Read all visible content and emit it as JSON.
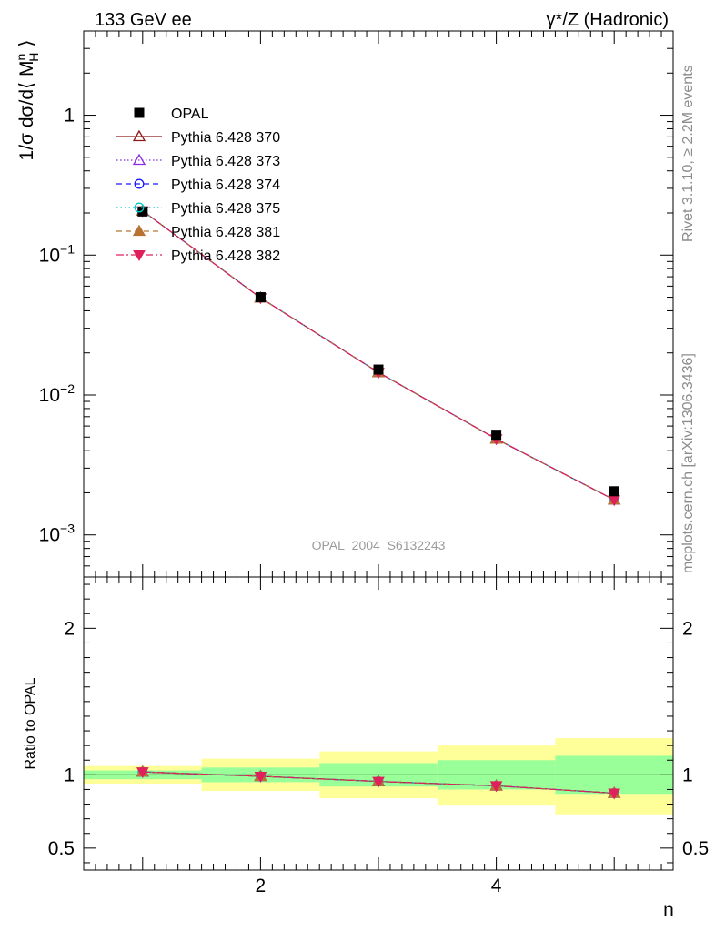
{
  "header": {
    "left": "133 GeV ee",
    "right": "γ*/Z (Hadronic)"
  },
  "side_labels": {
    "top": "Rivet 3.1.10, ≥ 2.2M events",
    "bottom": "mcplots.cern.ch [arXiv:1306.3436]"
  },
  "watermark": "OPAL_2004_S6132243",
  "colors": {
    "data": "#000000",
    "band_inner": "#99ff99",
    "band_outer": "#ffff99",
    "s370": "#8b1a1a",
    "s373": "#8b2be2",
    "s374": "#1a1aff",
    "s375": "#00c8c8",
    "s381": "#b87333",
    "s382": "#e0205a"
  },
  "chart_data": [
    {
      "type": "scatter",
      "ylabel_parts": {
        "prefix": "1/σ dσ/d⟨ M",
        "sup": "n",
        "sub": "H",
        "suffix": " ⟩"
      },
      "yscale": "log",
      "xlim": [
        0.5,
        5.5
      ],
      "ylim": [
        0.0005,
        4.0
      ],
      "yticks": [
        {
          "value": 1,
          "mant": "1",
          "exp": ""
        },
        {
          "value": 0.1,
          "mant": "10",
          "exp": "−1"
        },
        {
          "value": 0.01,
          "mant": "10",
          "exp": "−2"
        },
        {
          "value": 0.001,
          "mant": "10",
          "exp": "−3"
        }
      ],
      "x": [
        1,
        2,
        3,
        4,
        5
      ],
      "data_points": {
        "name": "OPAL",
        "values": [
          0.205,
          0.05,
          0.0152,
          0.0052,
          0.00205
        ]
      },
      "legend_placement": "top-left",
      "series": [
        {
          "name": "Pythia 6.428 370",
          "values": [
            0.207,
            0.0495,
            0.0145,
            0.00485,
            0.00178
          ]
        },
        {
          "name": "Pythia 6.428 373",
          "values": [
            0.207,
            0.0495,
            0.0145,
            0.00485,
            0.00178
          ]
        },
        {
          "name": "Pythia 6.428 374",
          "values": [
            0.207,
            0.0495,
            0.0145,
            0.00485,
            0.00178
          ]
        },
        {
          "name": "Pythia 6.428 375",
          "values": [
            0.207,
            0.0495,
            0.0145,
            0.00485,
            0.00178
          ]
        },
        {
          "name": "Pythia 6.428 381",
          "values": [
            0.207,
            0.0495,
            0.0145,
            0.00485,
            0.00178
          ]
        },
        {
          "name": "Pythia 6.428 382",
          "values": [
            0.207,
            0.0495,
            0.0145,
            0.00485,
            0.00178
          ]
        }
      ]
    },
    {
      "type": "line",
      "ylabel": "Ratio to OPAL",
      "xlabel": "n",
      "xlim": [
        0.5,
        5.5
      ],
      "ylim": [
        0.35,
        2.35
      ],
      "yticks": [
        {
          "value": 2,
          "label": "2"
        },
        {
          "value": 1,
          "label": "1"
        },
        {
          "value": 0.5,
          "label": "0.5"
        }
      ],
      "xticks": [
        {
          "value": 2,
          "label": "2"
        },
        {
          "value": 4,
          "label": "4"
        }
      ],
      "x": [
        1,
        2,
        3,
        4,
        5
      ],
      "bands": [
        {
          "x0": 0.5,
          "x1": 1.5,
          "inner": [
            0.97,
            1.03
          ],
          "outer": [
            0.94,
            1.06
          ]
        },
        {
          "x0": 1.5,
          "x1": 2.5,
          "inner": [
            0.95,
            1.05
          ],
          "outer": [
            0.89,
            1.11
          ]
        },
        {
          "x0": 2.5,
          "x1": 3.5,
          "inner": [
            0.92,
            1.08
          ],
          "outer": [
            0.84,
            1.16
          ]
        },
        {
          "x0": 3.5,
          "x1": 4.5,
          "inner": [
            0.9,
            1.1
          ],
          "outer": [
            0.79,
            1.2
          ]
        },
        {
          "x0": 4.5,
          "x1": 5.5,
          "inner": [
            0.87,
            1.13
          ],
          "outer": [
            0.73,
            1.25
          ]
        }
      ],
      "ratio_values": [
        1.02,
        0.99,
        0.955,
        0.925,
        0.875
      ]
    }
  ]
}
